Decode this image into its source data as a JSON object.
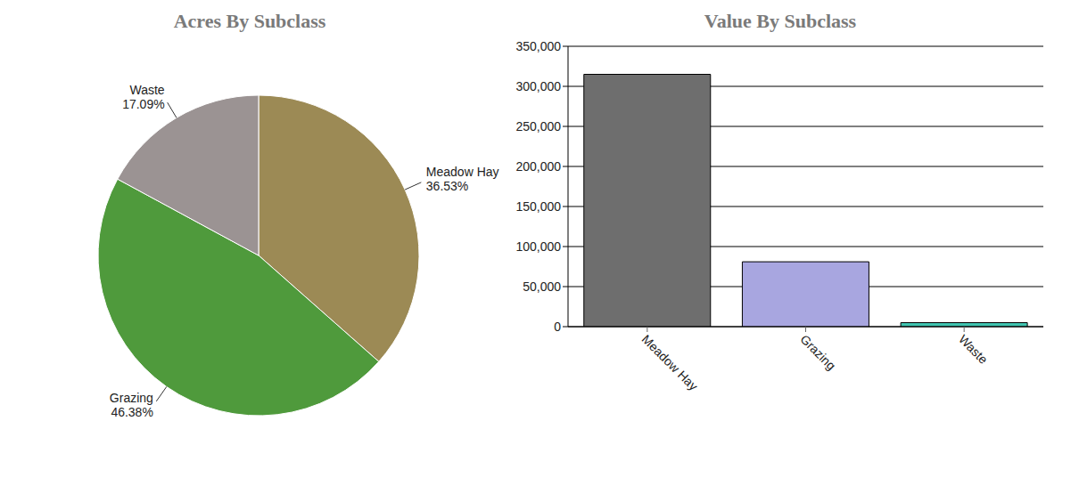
{
  "chart_data": [
    {
      "type": "pie",
      "title": "Acres By Subclass",
      "categories": [
        "Meadow Hay",
        "Grazing",
        "Waste"
      ],
      "values": [
        36.53,
        46.38,
        17.09
      ],
      "value_labels": [
        "36.53%",
        "46.38%",
        "17.09%"
      ],
      "colors": [
        "#9c8a55",
        "#4f9a3c",
        "#9b9393"
      ],
      "data_labels": true
    },
    {
      "type": "bar",
      "title": "Value By Subclass",
      "categories": [
        "Meadow Hay",
        "Grazing",
        "Waste"
      ],
      "values": [
        315000,
        81000,
        5000
      ],
      "colors": [
        "#6e6e6e",
        "#a8a6e0",
        "#40c4b0"
      ],
      "ylim": [
        0,
        350000
      ],
      "yticks": [
        0,
        {
          "value": 50000,
          "label": "50,000"
        },
        {
          "value": 100000,
          "label": "100,000"
        },
        {
          "value": 150000,
          "label": "150,000"
        },
        {
          "value": 200000,
          "label": "200,000"
        },
        {
          "value": 250000,
          "label": "250,000"
        },
        {
          "value": 300000,
          "label": "300,000"
        },
        {
          "value": 350000,
          "label": "350,000"
        }
      ],
      "grid": true
    }
  ]
}
